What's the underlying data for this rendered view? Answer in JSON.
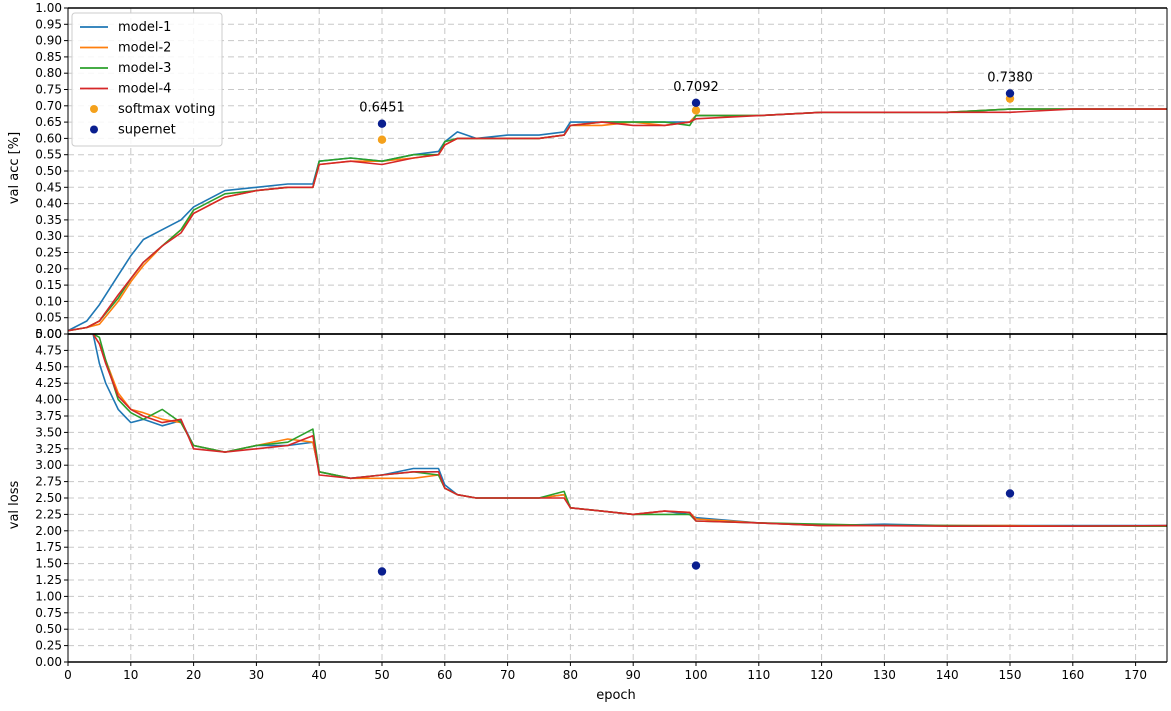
{
  "chart_data": [
    {
      "type": "line",
      "ylabel": "val acc [%]",
      "xlim": [
        0,
        175
      ],
      "ylim": [
        0,
        1.0
      ],
      "grid": true,
      "legend_placement": "top-left",
      "x_ticks": [
        0,
        10,
        20,
        30,
        40,
        50,
        60,
        70,
        80,
        90,
        100,
        110,
        120,
        130,
        140,
        150,
        160,
        170
      ],
      "y_ticks": [
        0.0,
        0.05,
        0.1,
        0.15,
        0.2,
        0.25,
        0.3,
        0.35,
        0.4,
        0.45,
        0.5,
        0.55,
        0.6,
        0.65,
        0.7,
        0.75,
        0.8,
        0.85,
        0.9,
        0.95,
        1.0
      ],
      "series": [
        {
          "name": "model-1",
          "color": "#1f77b4",
          "x": [
            0,
            3,
            5,
            8,
            10,
            12,
            15,
            18,
            20,
            25,
            30,
            35,
            39,
            40,
            45,
            50,
            55,
            59,
            60,
            62,
            65,
            70,
            75,
            79,
            80,
            85,
            90,
            95,
            99,
            100,
            110,
            120,
            130,
            140,
            150,
            160,
            175
          ],
          "y": [
            0.01,
            0.04,
            0.09,
            0.18,
            0.24,
            0.29,
            0.32,
            0.35,
            0.39,
            0.44,
            0.45,
            0.46,
            0.46,
            0.53,
            0.54,
            0.53,
            0.55,
            0.56,
            0.59,
            0.62,
            0.6,
            0.61,
            0.61,
            0.62,
            0.65,
            0.65,
            0.65,
            0.65,
            0.65,
            0.67,
            0.67,
            0.68,
            0.68,
            0.68,
            0.69,
            0.69,
            0.69
          ]
        },
        {
          "name": "model-2",
          "color": "#ff7f0e",
          "x": [
            0,
            3,
            5,
            8,
            10,
            12,
            15,
            18,
            20,
            25,
            30,
            35,
            39,
            40,
            45,
            50,
            55,
            59,
            60,
            62,
            65,
            70,
            75,
            79,
            80,
            85,
            90,
            95,
            99,
            100,
            110,
            120,
            130,
            140,
            150,
            160,
            175
          ],
          "y": [
            0.01,
            0.02,
            0.03,
            0.1,
            0.16,
            0.21,
            0.27,
            0.32,
            0.37,
            0.42,
            0.44,
            0.45,
            0.45,
            0.52,
            0.53,
            0.53,
            0.54,
            0.55,
            0.58,
            0.6,
            0.6,
            0.6,
            0.6,
            0.61,
            0.64,
            0.64,
            0.65,
            0.64,
            0.65,
            0.67,
            0.67,
            0.68,
            0.68,
            0.68,
            0.69,
            0.69,
            0.69
          ]
        },
        {
          "name": "model-3",
          "color": "#2ca02c",
          "x": [
            0,
            3,
            5,
            8,
            10,
            12,
            15,
            18,
            20,
            25,
            30,
            35,
            39,
            40,
            45,
            50,
            55,
            59,
            60,
            62,
            65,
            70,
            75,
            79,
            80,
            85,
            90,
            95,
            99,
            100,
            110,
            120,
            130,
            140,
            150,
            160,
            175
          ],
          "y": [
            0.01,
            0.02,
            0.04,
            0.11,
            0.17,
            0.22,
            0.27,
            0.32,
            0.38,
            0.43,
            0.44,
            0.45,
            0.45,
            0.53,
            0.54,
            0.53,
            0.55,
            0.55,
            0.59,
            0.6,
            0.6,
            0.6,
            0.6,
            0.61,
            0.64,
            0.65,
            0.65,
            0.65,
            0.64,
            0.67,
            0.67,
            0.68,
            0.68,
            0.68,
            0.69,
            0.69,
            0.69
          ]
        },
        {
          "name": "model-4",
          "color": "#d62728",
          "x": [
            0,
            3,
            5,
            8,
            10,
            12,
            15,
            18,
            20,
            25,
            30,
            35,
            39,
            40,
            45,
            50,
            55,
            59,
            60,
            62,
            65,
            70,
            75,
            79,
            80,
            85,
            90,
            95,
            99,
            100,
            110,
            120,
            130,
            140,
            150,
            160,
            175
          ],
          "y": [
            0.01,
            0.02,
            0.04,
            0.12,
            0.17,
            0.22,
            0.27,
            0.31,
            0.37,
            0.42,
            0.44,
            0.45,
            0.45,
            0.52,
            0.53,
            0.52,
            0.54,
            0.55,
            0.58,
            0.6,
            0.6,
            0.6,
            0.6,
            0.61,
            0.64,
            0.65,
            0.64,
            0.64,
            0.65,
            0.66,
            0.67,
            0.68,
            0.68,
            0.68,
            0.68,
            0.69,
            0.69
          ]
        },
        {
          "name": "softmax voting",
          "color": "#f4a11c",
          "marker": "dot",
          "x": [
            50,
            100,
            150
          ],
          "y": [
            0.596,
            0.686,
            0.722
          ]
        },
        {
          "name": "supernet",
          "color": "#0a1f8f",
          "marker": "dot",
          "x": [
            50,
            100,
            150
          ],
          "y": [
            0.6451,
            0.7092,
            0.738
          ]
        }
      ],
      "annotations": [
        {
          "x": 50,
          "y": 0.6451,
          "text": "0.6451"
        },
        {
          "x": 100,
          "y": 0.7092,
          "text": "0.7092"
        },
        {
          "x": 150,
          "y": 0.738,
          "text": "0.7380"
        }
      ]
    },
    {
      "type": "line",
      "xlabel": "epoch",
      "ylabel": "val loss",
      "xlim": [
        0,
        175
      ],
      "ylim": [
        0,
        5.0
      ],
      "grid": true,
      "x_ticks": [
        0,
        10,
        20,
        30,
        40,
        50,
        60,
        70,
        80,
        90,
        100,
        110,
        120,
        130,
        140,
        150,
        160,
        170
      ],
      "y_ticks": [
        0.0,
        0.25,
        0.5,
        0.75,
        1.0,
        1.25,
        1.5,
        1.75,
        2.0,
        2.25,
        2.5,
        2.75,
        3.0,
        3.25,
        3.5,
        3.75,
        4.0,
        4.25,
        4.5,
        4.75,
        5.0
      ],
      "series": [
        {
          "name": "model-1",
          "color": "#1f77b4",
          "x": [
            4,
            5,
            6,
            8,
            10,
            12,
            15,
            18,
            20,
            25,
            30,
            35,
            39,
            40,
            45,
            50,
            55,
            59,
            60,
            62,
            65,
            70,
            75,
            79,
            80,
            85,
            90,
            95,
            99,
            100,
            110,
            120,
            130,
            140,
            150,
            160,
            175
          ],
          "y": [
            5.0,
            4.55,
            4.25,
            3.85,
            3.65,
            3.7,
            3.6,
            3.68,
            3.3,
            3.2,
            3.3,
            3.3,
            3.35,
            2.9,
            2.8,
            2.85,
            2.95,
            2.95,
            2.7,
            2.55,
            2.5,
            2.5,
            2.5,
            2.55,
            2.35,
            2.3,
            2.25,
            2.3,
            2.25,
            2.2,
            2.12,
            2.08,
            2.1,
            2.08,
            2.08,
            2.08,
            2.08
          ]
        },
        {
          "name": "model-2",
          "color": "#ff7f0e",
          "x": [
            4,
            5,
            6,
            8,
            10,
            12,
            15,
            18,
            20,
            25,
            30,
            35,
            39,
            40,
            45,
            50,
            55,
            59,
            60,
            62,
            65,
            70,
            75,
            79,
            80,
            85,
            90,
            95,
            99,
            100,
            110,
            120,
            130,
            140,
            150,
            160,
            175
          ],
          "y": [
            5.0,
            4.85,
            4.6,
            4.1,
            3.85,
            3.8,
            3.7,
            3.65,
            3.3,
            3.2,
            3.3,
            3.4,
            3.35,
            2.9,
            2.8,
            2.8,
            2.8,
            2.85,
            2.65,
            2.55,
            2.5,
            2.5,
            2.5,
            2.55,
            2.35,
            2.3,
            2.25,
            2.3,
            2.28,
            2.18,
            2.12,
            2.08,
            2.08,
            2.08,
            2.08,
            2.07,
            2.07
          ]
        },
        {
          "name": "model-3",
          "color": "#2ca02c",
          "x": [
            4,
            5,
            6,
            8,
            10,
            12,
            15,
            18,
            20,
            25,
            30,
            35,
            39,
            40,
            45,
            50,
            55,
            59,
            60,
            62,
            65,
            70,
            75,
            79,
            80,
            85,
            90,
            95,
            99,
            100,
            110,
            120,
            130,
            140,
            150,
            160,
            175
          ],
          "y": [
            5.0,
            4.95,
            4.6,
            4.0,
            3.8,
            3.7,
            3.85,
            3.65,
            3.3,
            3.2,
            3.3,
            3.35,
            3.55,
            2.9,
            2.8,
            2.85,
            2.9,
            2.85,
            2.65,
            2.55,
            2.5,
            2.5,
            2.5,
            2.6,
            2.35,
            2.3,
            2.25,
            2.25,
            2.25,
            2.15,
            2.12,
            2.1,
            2.08,
            2.08,
            2.07,
            2.07,
            2.07
          ]
        },
        {
          "name": "model-4",
          "color": "#d62728",
          "x": [
            4,
            5,
            6,
            8,
            10,
            12,
            15,
            18,
            20,
            25,
            30,
            35,
            39,
            40,
            45,
            50,
            55,
            59,
            60,
            62,
            65,
            70,
            75,
            79,
            80,
            85,
            90,
            95,
            99,
            100,
            110,
            120,
            130,
            140,
            150,
            160,
            175
          ],
          "y": [
            5.0,
            4.85,
            4.55,
            4.05,
            3.85,
            3.75,
            3.65,
            3.7,
            3.25,
            3.2,
            3.25,
            3.3,
            3.45,
            2.85,
            2.8,
            2.85,
            2.9,
            2.9,
            2.65,
            2.55,
            2.5,
            2.5,
            2.5,
            2.5,
            2.35,
            2.3,
            2.25,
            2.3,
            2.28,
            2.15,
            2.12,
            2.08,
            2.08,
            2.07,
            2.07,
            2.07,
            2.08
          ]
        },
        {
          "name": "supernet",
          "color": "#0a1f8f",
          "marker": "dot",
          "x": [
            50,
            100,
            150
          ],
          "y": [
            1.38,
            1.47,
            2.57
          ]
        }
      ]
    }
  ]
}
